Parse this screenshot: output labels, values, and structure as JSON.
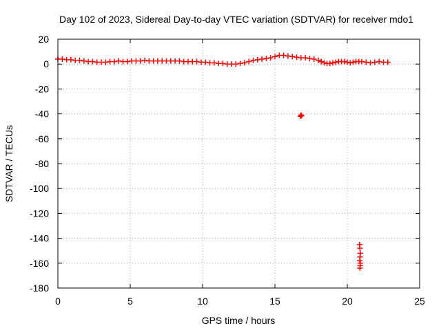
{
  "chart_data": {
    "type": "scatter",
    "title": "Day 102 of 2023, Sidereal Day-to-day VTEC variation (SDTVAR) for receiver mdo1",
    "xlabel": "GPS time / hours",
    "ylabel": "SDTVAR / TECUs",
    "xlim": [
      0,
      25
    ],
    "ylim": [
      -180,
      20
    ],
    "xticks": [
      0,
      5,
      10,
      15,
      20,
      25
    ],
    "yticks": [
      20,
      0,
      -20,
      -40,
      -60,
      -80,
      -100,
      -120,
      -140,
      -160,
      -180
    ],
    "grid": true,
    "marker": "plus",
    "color": "#ff0000",
    "series": [
      {
        "name": "SDTVAR",
        "x": [
          0.0,
          0.3,
          0.6,
          0.9,
          1.2,
          1.5,
          1.8,
          2.1,
          2.4,
          2.7,
          3.0,
          3.3,
          3.6,
          3.9,
          4.2,
          4.5,
          4.8,
          5.1,
          5.4,
          5.7,
          6.0,
          6.3,
          6.6,
          6.9,
          7.2,
          7.5,
          7.8,
          8.1,
          8.4,
          8.7,
          9.0,
          9.3,
          9.6,
          9.9,
          10.2,
          10.5,
          10.8,
          11.1,
          11.4,
          11.7,
          12.0,
          12.3,
          12.6,
          12.9,
          13.2,
          13.5,
          13.8,
          14.1,
          14.4,
          14.7,
          15.0,
          15.3,
          15.6,
          15.9,
          16.2,
          16.5,
          16.8,
          17.1,
          17.4,
          17.7,
          18.0,
          18.2,
          18.4,
          18.6,
          18.8,
          19.0,
          19.2,
          19.4,
          19.6,
          19.8,
          20.0,
          20.2,
          20.4,
          20.6,
          20.8,
          21.0,
          21.3,
          21.6,
          21.9,
          22.2,
          22.5,
          22.8,
          16.75,
          16.8,
          16.85,
          20.85,
          20.87,
          20.9,
          20.88,
          20.86,
          20.9,
          20.89,
          20.87
        ],
        "y": [
          4,
          4,
          3.5,
          3.5,
          3,
          3,
          2.5,
          2,
          2,
          1.5,
          1.5,
          1.5,
          2,
          2,
          2.5,
          2,
          2,
          2.5,
          2.5,
          2.5,
          3,
          2.5,
          2.5,
          2.5,
          2.5,
          2.5,
          2.5,
          2.5,
          2.5,
          2,
          2,
          2,
          2,
          1.5,
          1.5,
          1,
          1,
          0.5,
          0.5,
          0,
          0,
          0,
          0.5,
          1,
          2,
          3,
          3.5,
          4,
          4.5,
          5,
          6,
          7,
          7,
          6.5,
          6,
          5.5,
          5,
          5,
          4.5,
          4,
          3,
          2,
          1,
          0.5,
          0.5,
          1,
          1.5,
          2,
          2,
          2,
          1.5,
          1,
          1.5,
          2,
          2,
          2,
          1.5,
          1,
          1.5,
          2,
          1.5,
          1.5,
          -42,
          -41,
          -41.5,
          -145,
          -148,
          -152,
          -155,
          -158,
          -160,
          -162,
          -164
        ]
      }
    ]
  }
}
